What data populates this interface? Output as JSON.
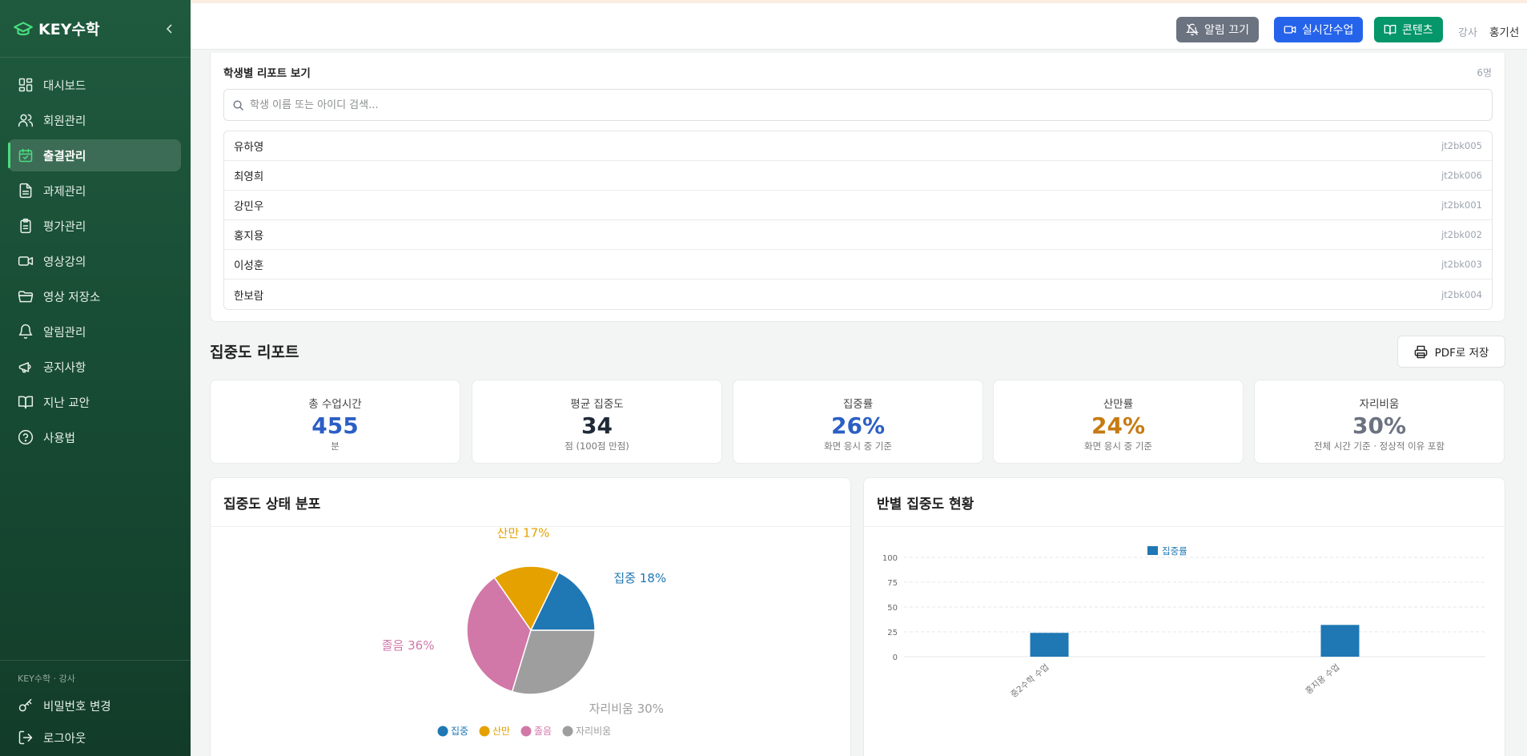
{
  "sidebar": {
    "brand": "KEY수학",
    "items": [
      {
        "label": "대시보드",
        "icon": "dashboard-icon"
      },
      {
        "label": "회원관리",
        "icon": "users-icon"
      },
      {
        "label": "출결관리",
        "icon": "calendar-check-icon",
        "active": true
      },
      {
        "label": "과제관리",
        "icon": "document-icon"
      },
      {
        "label": "평가관리",
        "icon": "clipboard-icon"
      },
      {
        "label": "영상강의",
        "icon": "video-icon"
      },
      {
        "label": "영상 저장소",
        "icon": "folder-icon"
      },
      {
        "label": "알림관리",
        "icon": "bell-icon"
      },
      {
        "label": "공지사항",
        "icon": "megaphone-icon"
      },
      {
        "label": "지난 교안",
        "icon": "book-icon"
      },
      {
        "label": "사용법",
        "icon": "help-icon"
      }
    ],
    "footer": {
      "role_line": "KEY수학 · 강사",
      "change_password": "비밀번호 변경",
      "logout": "로그아웃"
    }
  },
  "topbar": {
    "alarm_off": "알림 끄기",
    "live_class": "실시간수업",
    "content": "콘텐츠",
    "role": "강사",
    "user": "홍기선"
  },
  "student_report": {
    "title": "학생별 리포트 보기",
    "count": "6명",
    "search_placeholder": "학생 이름 또는 아이디 검색...",
    "students": [
      {
        "name": "유하영",
        "id": "jt2bk005"
      },
      {
        "name": "최영희",
        "id": "jt2bk006"
      },
      {
        "name": "강민우",
        "id": "jt2bk001"
      },
      {
        "name": "홍지용",
        "id": "jt2bk002"
      },
      {
        "name": "이성훈",
        "id": "jt2bk003"
      },
      {
        "name": "한보람",
        "id": "jt2bk004"
      }
    ]
  },
  "concentration": {
    "title": "집중도 리포트",
    "pdf_button": "PDF로 저장",
    "stats": [
      {
        "label": "총 수업시간",
        "value": "455",
        "unit": "분",
        "color": "#2b5fc4"
      },
      {
        "label": "평균 집중도",
        "value": "34",
        "unit": "점 (100점 만점)",
        "color": "#1f2937"
      },
      {
        "label": "집중률",
        "value": "26%",
        "unit": "화면 응시 중 기준",
        "color": "#2b5fc4"
      },
      {
        "label": "산만률",
        "value": "24%",
        "unit": "화면 응시 중 기준",
        "color": "#c77a12"
      },
      {
        "label": "자리비움",
        "value": "30%",
        "unit": "전체 시간 기준 · 정상적 이유 포함",
        "color": "#6b7280"
      }
    ]
  },
  "pie_card": {
    "title": "집중도 상태 분포"
  },
  "bar_card": {
    "title": "반별 집중도 현황"
  },
  "chart_data": [
    {
      "type": "pie",
      "title": "집중도 상태 분포",
      "slices": [
        {
          "label": "집중",
          "value": 18,
          "color": "#1f77b4"
        },
        {
          "label": "산만",
          "value": 17,
          "color": "#e5a100"
        },
        {
          "label": "졸음",
          "value": 36,
          "color": "#d178a8"
        },
        {
          "label": "자리비움",
          "value": 30,
          "color": "#9e9e9e"
        }
      ],
      "slice_label_format": "{label} {value}%",
      "legend": "bottom"
    },
    {
      "type": "bar",
      "title": "반별 집중도 현황",
      "categories": [
        "중2수학 수업",
        "홍지용 수업"
      ],
      "series": [
        {
          "name": "집중률",
          "values": [
            24,
            32
          ],
          "color": "#1f77b4"
        }
      ],
      "ylim": [
        0,
        100
      ],
      "yticks": [
        0,
        25,
        50,
        75,
        100
      ],
      "grid": true,
      "legend": "top-center"
    }
  ]
}
